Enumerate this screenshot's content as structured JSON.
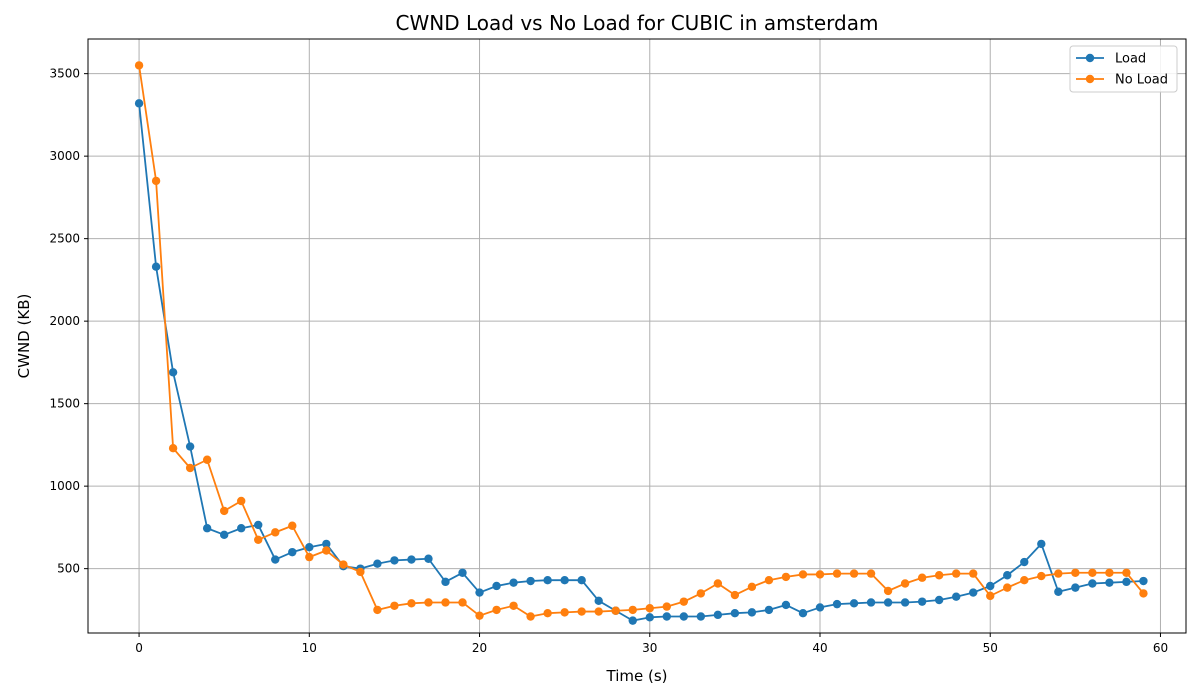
{
  "chart_data": {
    "type": "line",
    "title": "CWND Load vs No Load for CUBIC in amsterdam",
    "xlabel": "Time (s)",
    "ylabel": "CWND (KB)",
    "xlim": [
      -3,
      61.5
    ],
    "ylim": [
      110,
      3710
    ],
    "xticks": [
      0,
      10,
      20,
      30,
      40,
      50,
      60
    ],
    "yticks": [
      500,
      1000,
      1500,
      2000,
      2500,
      3000,
      3500
    ],
    "grid": true,
    "legend_position": "top-right",
    "x": [
      0,
      1,
      2,
      3,
      4,
      5,
      6,
      7,
      8,
      9,
      10,
      11,
      12,
      13,
      14,
      15,
      16,
      17,
      18,
      19,
      20,
      21,
      22,
      23,
      24,
      25,
      26,
      27,
      28,
      29,
      30,
      31,
      32,
      33,
      34,
      35,
      36,
      37,
      38,
      39,
      40,
      41,
      42,
      43,
      44,
      45,
      46,
      47,
      48,
      49,
      50,
      51,
      52,
      53,
      54,
      55,
      56,
      57,
      58,
      59
    ],
    "series": [
      {
        "name": "Load",
        "color": "#1f77b4",
        "values": [
          3320,
          2330,
          1690,
          1240,
          745,
          705,
          745,
          765,
          555,
          600,
          630,
          650,
          515,
          500,
          530,
          550,
          555,
          560,
          420,
          475,
          355,
          395,
          415,
          425,
          430,
          430,
          430,
          305,
          245,
          185,
          205,
          210,
          210,
          210,
          220,
          230,
          235,
          250,
          280,
          230,
          265,
          285,
          290,
          295,
          295,
          295,
          300,
          310,
          330,
          355,
          395,
          460,
          540,
          650,
          360,
          385,
          410,
          415,
          420,
          425
        ]
      },
      {
        "name": "No Load",
        "color": "#ff7f0e",
        "values": [
          3550,
          2850,
          1230,
          1110,
          1160,
          850,
          910,
          675,
          720,
          760,
          570,
          610,
          525,
          480,
          250,
          275,
          290,
          295,
          295,
          295,
          215,
          250,
          275,
          210,
          230,
          235,
          240,
          240,
          245,
          250,
          260,
          270,
          300,
          350,
          410,
          340,
          390,
          430,
          450,
          465,
          465,
          470,
          470,
          470,
          365,
          410,
          445,
          460,
          470,
          470,
          335,
          385,
          430,
          455,
          470,
          475,
          475,
          475,
          475,
          350
        ]
      }
    ]
  }
}
